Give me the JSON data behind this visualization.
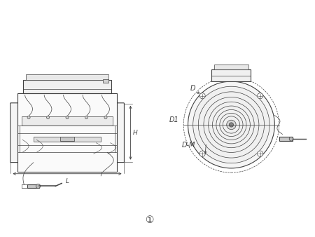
{
  "bg_color": "#ffffff",
  "line_color": "#404040",
  "dim_color": "#404040",
  "fig_width": 4.5,
  "fig_height": 3.38,
  "dpi": 100,
  "circle1_label": "D",
  "circle2_label": "D1",
  "circle3_label": "D-M",
  "dim_L": "L",
  "dim_H": "H",
  "footnote": "①",
  "lw_main": 0.8,
  "lw_thin": 0.5,
  "lw_dim": 0.6
}
